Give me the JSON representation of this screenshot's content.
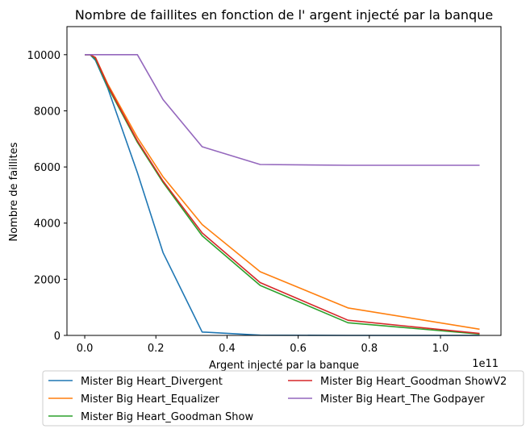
{
  "chart_data": {
    "type": "line",
    "title": "Nombre de faillites en fonction de l' argent injecté par la banque",
    "xlabel": "Argent injecté par la banque",
    "ylabel": "Nombre de faillites",
    "x_offset_label": "1e11",
    "xlim": [
      -0.05,
      1.17
    ],
    "ylim": [
      0,
      11000
    ],
    "x_ticks": [
      0.0,
      0.2,
      0.4,
      0.6,
      0.8,
      1.0
    ],
    "x_tick_labels": [
      "0.0",
      "0.2",
      "0.4",
      "0.6",
      "0.8",
      "1.0"
    ],
    "y_ticks": [
      0,
      2000,
      4000,
      6000,
      8000,
      10000
    ],
    "y_tick_labels": [
      "0",
      "2000",
      "4000",
      "6000",
      "8000",
      "10000"
    ],
    "grid": false,
    "legend_placement": "below",
    "x": [
      0.0,
      0.015,
      0.03,
      0.065,
      0.148,
      0.22,
      0.33,
      0.493,
      0.74,
      1.11
    ],
    "series": [
      {
        "name": "Mister Big Heart_Divergent",
        "color": "#1f77b4",
        "values": [
          10000,
          10000,
          9800,
          8800,
          5800,
          2950,
          120,
          10,
          0,
          0
        ]
      },
      {
        "name": "Mister Big Heart_Equalizer",
        "color": "#ff7f0e",
        "values": [
          10000,
          10000,
          9900,
          8950,
          7050,
          5650,
          3950,
          2270,
          980,
          220
        ]
      },
      {
        "name": "Mister Big Heart_Goodman Show",
        "color": "#2ca02c",
        "values": [
          10000,
          10000,
          9850,
          8850,
          6880,
          5450,
          3550,
          1780,
          450,
          50
        ]
      },
      {
        "name": "Mister Big Heart_Goodman ShowV2",
        "color": "#d62728",
        "values": [
          10000,
          10000,
          9900,
          8900,
          6930,
          5500,
          3650,
          1880,
          540,
          70
        ]
      },
      {
        "name": "Mister Big Heart_The Godpayer",
        "color": "#9467bd",
        "values": [
          10000,
          10000,
          10000,
          10000,
          10000,
          8400,
          6720,
          6090,
          6060,
          6060
        ]
      }
    ]
  }
}
